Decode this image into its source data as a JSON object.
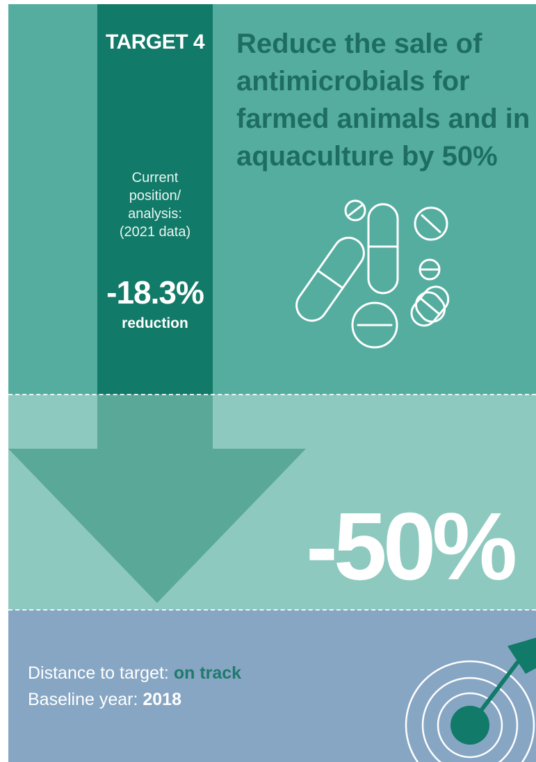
{
  "colors": {
    "top_band": "#55ad9f",
    "middle_band": "#8dc9bf",
    "bottom_band": "#87a6c3",
    "arrow_shaft": "#117a68",
    "arrow_head": "#5aa898",
    "title_text": "#1d6e61",
    "on_track_text": "#1f7a6c"
  },
  "target": {
    "label": "TARGET 4",
    "title": "Reduce the sale of\nantimicrobials for\nfarmed animals and in\naquaculture by 50%"
  },
  "current": {
    "label": "Current\nposition/\nanalysis:\n(2021 data)",
    "value": "-18.3%",
    "suffix": "reduction"
  },
  "goal": {
    "value": "-50%"
  },
  "status": {
    "distance_label": "Distance to target: ",
    "distance_value": "on track",
    "baseline_label": "Baseline year: ",
    "baseline_value": "2018"
  },
  "icons": {
    "arrow": "down-arrow-icon",
    "pills": "pills-icon",
    "target": "dartboard-target-icon"
  }
}
